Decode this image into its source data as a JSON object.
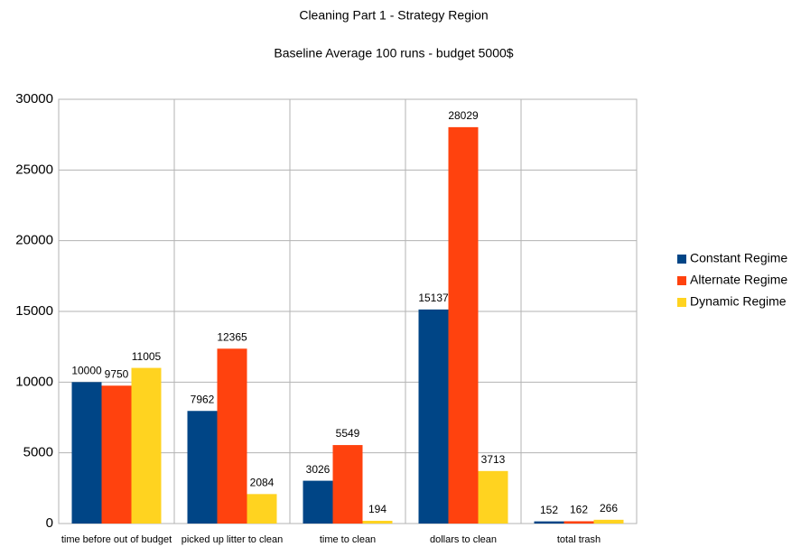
{
  "chart_data": {
    "type": "bar",
    "title": "Cleaning Part 1 - Strategy Region",
    "subtitle": "Baseline Average 100 runs - budget 5000$",
    "categories": [
      "time before out of budget",
      "picked up litter to clean",
      "time to clean",
      "dollars to clean",
      "total trash"
    ],
    "series": [
      {
        "name": "Constant Regime",
        "color": "#004586",
        "values": [
          10000,
          7962,
          3026,
          15137,
          152
        ]
      },
      {
        "name": "Alternate Regime",
        "color": "#ff420e",
        "values": [
          9750,
          12365,
          5549,
          28029,
          162
        ]
      },
      {
        "name": "Dynamic Regime",
        "color": "#ffd320",
        "values": [
          11005,
          2084,
          194,
          3713,
          266
        ]
      }
    ],
    "ylim": [
      0,
      30000
    ],
    "yticks": [
      0,
      5000,
      10000,
      15000,
      20000,
      25000,
      30000
    ],
    "grid": true,
    "legend": "right"
  }
}
